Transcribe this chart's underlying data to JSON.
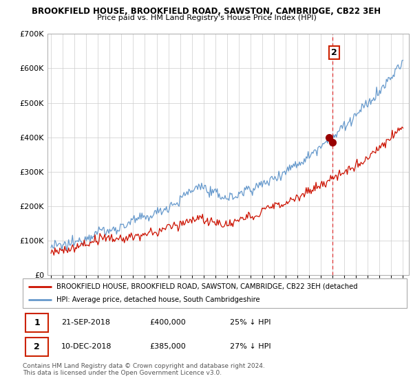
{
  "title1": "BROOKFIELD HOUSE, BROOKFIELD ROAD, SAWSTON, CAMBRIDGE, CB22 3EH",
  "title2": "Price paid vs. HM Land Registry's House Price Index (HPI)",
  "legend_red": "BROOKFIELD HOUSE, BROOKFIELD ROAD, SAWSTON, CAMBRIDGE, CB22 3EH (detached",
  "legend_blue": "HPI: Average price, detached house, South Cambridgeshire",
  "annotation1_date": "21-SEP-2018",
  "annotation1_price": "£400,000",
  "annotation1_hpi": "25% ↓ HPI",
  "annotation2_date": "10-DEC-2018",
  "annotation2_price": "£385,000",
  "annotation2_hpi": "27% ↓ HPI",
  "footer": "Contains HM Land Registry data © Crown copyright and database right 2024.\nThis data is licensed under the Open Government Licence v3.0.",
  "vline_x": 2019.0,
  "marker1_x": 2018.72,
  "marker1_y": 400000,
  "marker2_x": 2019.0,
  "marker2_y": 385000,
  "ylim": [
    0,
    700000
  ],
  "xlim": [
    1994.7,
    2025.5
  ],
  "background_color": "#ffffff",
  "grid_color": "#cccccc",
  "red_line_color": "#cc1100",
  "blue_line_color": "#6699cc"
}
